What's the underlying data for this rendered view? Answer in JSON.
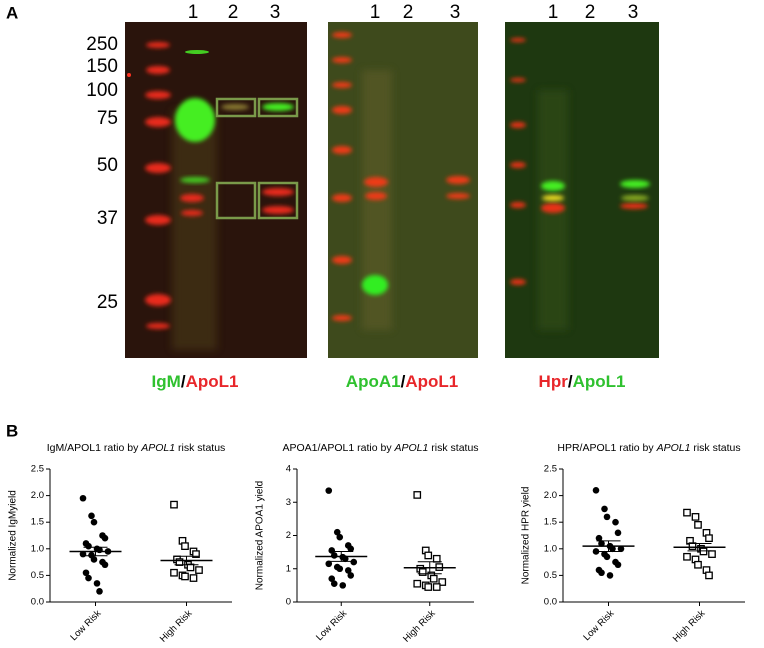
{
  "panel_a": {
    "label": "A",
    "markers": [
      250,
      150,
      100,
      75,
      50,
      37,
      25
    ],
    "blots": [
      {
        "lanes": [
          "1",
          "2",
          "3"
        ],
        "caption": [
          {
            "text": "IgM",
            "color": "#2fc12f"
          },
          {
            "text": "/",
            "color": "#000000"
          },
          {
            "text": "ApoL1",
            "color": "#e8262a"
          }
        ]
      },
      {
        "lanes": [
          "1",
          "2",
          "3"
        ],
        "caption": [
          {
            "text": "ApoA1",
            "color": "#2fc12f"
          },
          {
            "text": "/",
            "color": "#000000"
          },
          {
            "text": "ApoL1",
            "color": "#e8262a"
          }
        ]
      },
      {
        "lanes": [
          "1",
          "2",
          "3"
        ],
        "caption": [
          {
            "text": "Hpr",
            "color": "#e8262a"
          },
          {
            "text": "/",
            "color": "#000000"
          },
          {
            "text": "ApoL1",
            "color": "#2fc12f"
          }
        ]
      }
    ]
  },
  "panel_b": {
    "label": "B"
  },
  "chart_data": [
    {
      "type": "strip",
      "title": [
        "IgM/APOL1 ratio by ",
        "APOL1",
        " risk status"
      ],
      "y_label": "Normalized IgMyield",
      "categories": [
        "Low Risk",
        "High Risk"
      ],
      "ylim": [
        0,
        2.5
      ],
      "yticks": [
        {
          "value": 0,
          "label": "0.0"
        },
        {
          "value": 0.5,
          "label": "0.5"
        },
        {
          "value": 1,
          "label": "1.0"
        },
        {
          "value": 1.5,
          "label": "1.5"
        },
        {
          "value": 2,
          "label": "2.0"
        },
        {
          "value": 2.5,
          "label": "2.5"
        }
      ],
      "groups": [
        {
          "marker": "filled-circle",
          "values": [
            1.95,
            1.62,
            1.5,
            1.25,
            1.2,
            1.1,
            1.05,
            1.0,
            0.98,
            0.95,
            0.9,
            0.88,
            0.8,
            0.75,
            0.7,
            0.55,
            0.45,
            0.35,
            0.2
          ],
          "mean": 0.95,
          "sem": 0.08
        },
        {
          "marker": "open-square",
          "values": [
            1.83,
            1.15,
            1.05,
            0.95,
            0.9,
            0.8,
            0.75,
            0.7,
            0.65,
            0.6,
            0.55,
            0.5,
            0.48,
            0.45
          ],
          "mean": 0.78,
          "sem": 0.08
        }
      ]
    },
    {
      "type": "strip",
      "title": [
        "APOA1/APOL1 ratio by ",
        "APOL1",
        " risk status"
      ],
      "y_label": "Normalized APOA1 yield",
      "categories": [
        "Low Risk",
        "High Risk"
      ],
      "ylim": [
        0,
        4
      ],
      "yticks": [
        0,
        1,
        2,
        3,
        4
      ],
      "groups": [
        {
          "marker": "filled-circle",
          "values": [
            3.35,
            2.1,
            1.95,
            1.7,
            1.6,
            1.55,
            1.4,
            1.35,
            1.3,
            1.2,
            1.15,
            1.05,
            1.0,
            0.95,
            0.8,
            0.7,
            0.55,
            0.5
          ],
          "mean": 1.37,
          "sem": 0.15
        },
        {
          "marker": "open-square",
          "values": [
            3.22,
            1.55,
            1.4,
            1.3,
            1.05,
            1.0,
            0.9,
            0.8,
            0.7,
            0.6,
            0.55,
            0.5,
            0.45,
            0.45
          ],
          "mean": 1.03,
          "sem": 0.18
        }
      ]
    },
    {
      "type": "strip",
      "title": [
        "HPR/APOL1 ratio by ",
        "APOL1",
        " risk status"
      ],
      "y_label": "Normalized HPR yield",
      "categories": [
        "Low Risk",
        "High Risk"
      ],
      "ylim": [
        0,
        2.5
      ],
      "yticks": [
        {
          "value": 0,
          "label": "0.0"
        },
        {
          "value": 0.5,
          "label": "0.5"
        },
        {
          "value": 1,
          "label": "1.0"
        },
        {
          "value": 1.5,
          "label": "1.5"
        },
        {
          "value": 2,
          "label": "2.0"
        },
        {
          "value": 2.5,
          "label": "2.5"
        }
      ],
      "groups": [
        {
          "marker": "filled-circle",
          "values": [
            2.1,
            1.75,
            1.6,
            1.5,
            1.3,
            1.2,
            1.1,
            1.05,
            1.0,
            1.0,
            0.95,
            0.9,
            0.85,
            0.75,
            0.7,
            0.6,
            0.55,
            0.5
          ],
          "mean": 1.05,
          "sem": 0.1
        },
        {
          "marker": "open-square",
          "values": [
            1.68,
            1.6,
            1.45,
            1.3,
            1.2,
            1.15,
            1.05,
            1.0,
            0.95,
            0.9,
            0.85,
            0.8,
            0.7,
            0.6,
            0.5
          ],
          "mean": 1.03,
          "sem": 0.07
        }
      ]
    }
  ]
}
